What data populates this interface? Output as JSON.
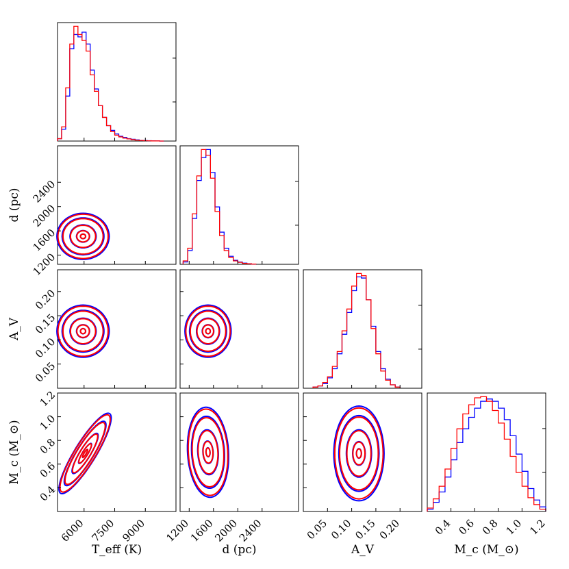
{
  "chart_data": {
    "type": "corner",
    "colors": {
      "series_a": "#0000ff",
      "series_b": "#ff0000"
    },
    "parameters": [
      {
        "key": "teff",
        "label": "T_eff (K)",
        "range": [
          4700,
          10500
        ],
        "ticks": [
          6000,
          7500,
          9000
        ],
        "tick_labels": [
          "6000",
          "7500",
          "9000"
        ]
      },
      {
        "key": "d",
        "label": "d (pc)",
        "range": [
          1050,
          3000
        ],
        "ticks": [
          1200,
          1600,
          2000,
          2400
        ],
        "tick_labels": [
          "1200",
          "1600",
          "2000",
          "2400"
        ]
      },
      {
        "key": "av",
        "label": "A_V",
        "range": [
          0.0,
          0.245
        ],
        "ticks": [
          0.05,
          0.1,
          0.15,
          0.2
        ],
        "tick_labels": [
          "0.05",
          "0.10",
          "0.15",
          "0.20"
        ]
      },
      {
        "key": "mc",
        "label": "M_c (M_⊙)",
        "range": [
          0.2,
          1.2
        ],
        "ticks": [
          0.4,
          0.6,
          0.8,
          1.0,
          1.2
        ],
        "tick_labels": [
          "0.4",
          "0.6",
          "0.8",
          "1.0",
          "1.2"
        ]
      }
    ],
    "histograms": {
      "teff": {
        "bin_edges": [
          4700,
          4900,
          5100,
          5300,
          5500,
          5700,
          5900,
          6100,
          6300,
          6500,
          6700,
          6900,
          7100,
          7300,
          7500,
          7700,
          7900,
          8100,
          8300,
          8500,
          8700,
          8900,
          9100,
          9300,
          9500,
          9700,
          9900
        ],
        "series_a": [
          0.02,
          0.1,
          0.38,
          0.78,
          0.9,
          0.88,
          0.92,
          0.82,
          0.6,
          0.44,
          0.3,
          0.2,
          0.13,
          0.09,
          0.06,
          0.04,
          0.03,
          0.02,
          0.015,
          0.01,
          0.006,
          0.004,
          0.003,
          0.002,
          0.001,
          0.0
        ],
        "series_b": [
          0.02,
          0.12,
          0.45,
          0.82,
          0.97,
          0.9,
          0.85,
          0.76,
          0.56,
          0.42,
          0.3,
          0.2,
          0.13,
          0.08,
          0.05,
          0.035,
          0.025,
          0.018,
          0.012,
          0.008,
          0.005,
          0.003,
          0.002,
          0.001,
          0.001,
          0.0
        ]
      },
      "d": {
        "bin_edges": [
          1100,
          1175,
          1250,
          1325,
          1400,
          1475,
          1550,
          1625,
          1700,
          1775,
          1850,
          1925,
          2000,
          2075,
          2150,
          2225,
          2300
        ],
        "series_a": [
          0.02,
          0.12,
          0.4,
          0.73,
          0.93,
          1.0,
          0.8,
          0.5,
          0.28,
          0.14,
          0.07,
          0.035,
          0.02,
          0.01,
          0.005,
          0.002
        ],
        "series_b": [
          0.03,
          0.14,
          0.44,
          0.77,
          1.0,
          0.95,
          0.75,
          0.46,
          0.25,
          0.12,
          0.06,
          0.03,
          0.017,
          0.008,
          0.004,
          0.002
        ]
      },
      "av": {
        "bin_edges": [
          0.02,
          0.03,
          0.04,
          0.05,
          0.06,
          0.07,
          0.08,
          0.09,
          0.1,
          0.11,
          0.12,
          0.13,
          0.14,
          0.15,
          0.16,
          0.17,
          0.18,
          0.19,
          0.2
        ],
        "series_a": [
          0.01,
          0.02,
          0.04,
          0.09,
          0.17,
          0.3,
          0.47,
          0.66,
          0.85,
          0.97,
          0.96,
          0.77,
          0.54,
          0.32,
          0.17,
          0.08,
          0.03,
          0.01
        ],
        "series_b": [
          0.01,
          0.02,
          0.05,
          0.1,
          0.19,
          0.32,
          0.5,
          0.69,
          0.89,
          1.0,
          0.98,
          0.77,
          0.52,
          0.3,
          0.15,
          0.07,
          0.03,
          0.01
        ]
      },
      "mc": {
        "bin_edges": [
          0.2,
          0.25,
          0.3,
          0.35,
          0.4,
          0.45,
          0.5,
          0.55,
          0.6,
          0.65,
          0.7,
          0.75,
          0.8,
          0.85,
          0.9,
          0.95,
          1.0,
          1.05,
          1.1,
          1.15,
          1.2
        ],
        "series_a": [
          0.02,
          0.08,
          0.17,
          0.3,
          0.45,
          0.6,
          0.72,
          0.82,
          0.9,
          0.96,
          0.98,
          0.96,
          0.9,
          0.8,
          0.66,
          0.5,
          0.35,
          0.2,
          0.1,
          0.04
        ],
        "series_b": [
          0.03,
          0.11,
          0.22,
          0.37,
          0.55,
          0.72,
          0.85,
          0.93,
          0.99,
          1.0,
          0.96,
          0.88,
          0.77,
          0.63,
          0.48,
          0.34,
          0.22,
          0.12,
          0.06,
          0.02
        ]
      }
    },
    "contour_pairs": [
      {
        "x": "teff",
        "y": "d",
        "center": [
          5950,
          1510
        ],
        "sigma": [
          640,
          190
        ],
        "corr": 0.0,
        "levels": [
          0.2,
          0.5,
          1.0,
          1.6,
          2.0
        ]
      },
      {
        "x": "teff",
        "y": "av",
        "center": [
          5950,
          0.118
        ],
        "sigma": [
          640,
          0.027
        ],
        "corr": 0.0,
        "levels": [
          0.2,
          0.5,
          1.0,
          1.6,
          2.0
        ]
      },
      {
        "x": "teff",
        "y": "mc",
        "center": [
          6050,
          0.69
        ],
        "sigma": [
          640,
          0.17
        ],
        "corr": 0.88,
        "levels": [
          0.2,
          0.5,
          1.0,
          1.6,
          2.0
        ]
      },
      {
        "x": "d",
        "y": "av",
        "center": [
          1510,
          0.118
        ],
        "sigma": [
          190,
          0.027
        ],
        "corr": 0.0,
        "levels": [
          0.2,
          0.5,
          1.0,
          1.6,
          2.0
        ]
      },
      {
        "x": "d",
        "y": "mc",
        "center": [
          1510,
          0.7
        ],
        "sigma": [
          170,
          0.19
        ],
        "corr": -0.1,
        "levels": [
          0.2,
          0.5,
          1.0,
          1.6,
          2.0
        ]
      },
      {
        "x": "av",
        "y": "mc",
        "center": [
          0.115,
          0.69
        ],
        "sigma": [
          0.026,
          0.2
        ],
        "corr": 0.0,
        "levels": [
          0.2,
          0.5,
          1.0,
          1.6,
          2.0
        ]
      }
    ]
  }
}
